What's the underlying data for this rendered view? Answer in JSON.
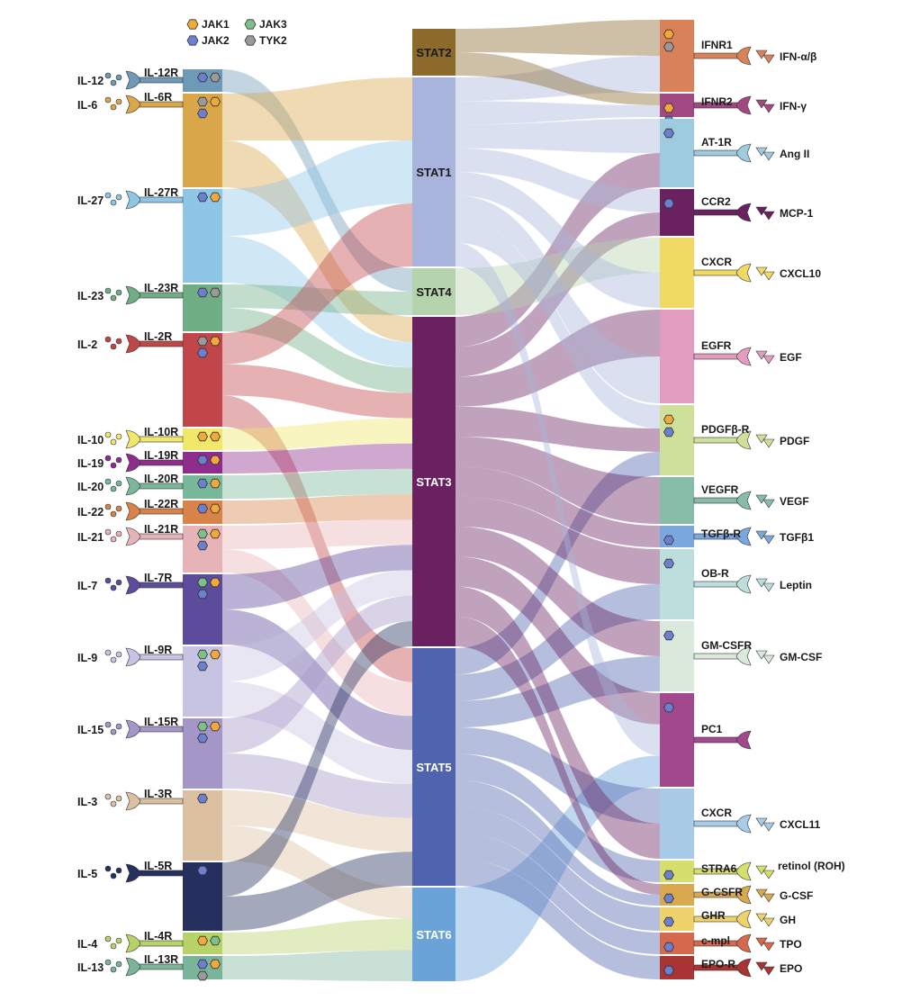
{
  "legend": [
    {
      "label": "JAK1",
      "color": "#f2a93b"
    },
    {
      "label": "JAK3",
      "color": "#7fc08a"
    },
    {
      "label": "JAK2",
      "color": "#6d7fcf"
    },
    {
      "label": "TYK2",
      "color": "#9a9a9a"
    }
  ],
  "stats": [
    {
      "label": "STAT2",
      "color": "#8b6a2c"
    },
    {
      "label": "STAT1",
      "color": "#a9b4dc"
    },
    {
      "label": "STAT4",
      "color": "#b5d3ad"
    },
    {
      "label": "STAT3",
      "color": "#6a2160"
    },
    {
      "label": "STAT5",
      "color": "#4f63ae"
    },
    {
      "label": "STAT6",
      "color": "#6aa3d8"
    }
  ],
  "left_receptors": [
    {
      "ligand": "IL-12",
      "receptor": "IL-12R",
      "color": "#6e9ab8",
      "jaks": [
        "JAK2",
        "TYK2"
      ],
      "targets": [
        "STAT4"
      ]
    },
    {
      "ligand": "IL-6",
      "receptor": "IL-6R",
      "color": "#d9a74a",
      "jaks": [
        "TYK2",
        "JAK1",
        "JAK2"
      ],
      "targets": [
        "STAT1",
        "STAT3"
      ]
    },
    {
      "ligand": "IL-27",
      "receptor": "IL-27R",
      "color": "#8fc6e6",
      "jaks": [
        "JAK2",
        "JAK1"
      ],
      "targets": [
        "STAT1",
        "STAT3"
      ]
    },
    {
      "ligand": "IL-23",
      "receptor": "IL-23R",
      "color": "#6fae85",
      "jaks": [
        "JAK2",
        "TYK2"
      ],
      "targets": [
        "STAT4",
        "STAT3"
      ]
    },
    {
      "ligand": "IL-2",
      "receptor": "IL-2R",
      "color": "#c0464a",
      "jaks": [
        "TYK2",
        "JAK1",
        "JAK2"
      ],
      "targets": [
        "STAT1",
        "STAT3",
        "STAT5"
      ]
    },
    {
      "ligand": "IL-10",
      "receptor": "IL-10R",
      "color": "#f1e76b",
      "jaks": [
        "JAK1",
        "JAK1"
      ],
      "targets": [
        "STAT3"
      ]
    },
    {
      "ligand": "IL-19",
      "receptor": "IL-19R",
      "color": "#8f2d8c",
      "jaks": [
        "JAK2",
        "JAK1"
      ],
      "targets": [
        "STAT3"
      ]
    },
    {
      "ligand": "IL-20",
      "receptor": "IL-20R",
      "color": "#79b79a",
      "jaks": [
        "JAK2",
        "JAK1"
      ],
      "targets": [
        "STAT3"
      ]
    },
    {
      "ligand": "IL-22",
      "receptor": "IL-22R",
      "color": "#d7834a",
      "jaks": [
        "JAK2",
        "JAK1"
      ],
      "targets": [
        "STAT3"
      ]
    },
    {
      "ligand": "IL-21",
      "receptor": "IL-21R",
      "color": "#e6b3b6",
      "jaks": [
        "JAK3",
        "JAK1",
        "JAK2"
      ],
      "targets": [
        "STAT3",
        "STAT5"
      ]
    },
    {
      "ligand": "IL-7",
      "receptor": "IL-7R",
      "color": "#5d4b9b",
      "jaks": [
        "JAK3",
        "JAK1",
        "JAK2"
      ],
      "targets": [
        "STAT3",
        "STAT5"
      ]
    },
    {
      "ligand": "IL-9",
      "receptor": "IL-9R",
      "color": "#c7c3e2",
      "jaks": [
        "JAK3",
        "JAK1",
        "JAK2"
      ],
      "targets": [
        "STAT3",
        "STAT5"
      ]
    },
    {
      "ligand": "IL-15",
      "receptor": "IL-15R",
      "color": "#a596c8",
      "jaks": [
        "JAK3",
        "JAK1",
        "JAK2"
      ],
      "targets": [
        "STAT3",
        "STAT5"
      ]
    },
    {
      "ligand": "IL-3",
      "receptor": "IL-3R",
      "color": "#dcc1a0",
      "jaks": [
        "JAK2"
      ],
      "targets": [
        "STAT5",
        "STAT6"
      ]
    },
    {
      "ligand": "IL-5",
      "receptor": "IL-5R",
      "color": "#26305e",
      "jaks": [
        "JAK2"
      ],
      "targets": [
        "STAT3",
        "STAT5"
      ]
    },
    {
      "ligand": "IL-4",
      "receptor": "IL-4R",
      "color": "#b8d26a",
      "jaks": [
        "JAK1",
        "JAK3"
      ],
      "targets": [
        "STAT6"
      ]
    },
    {
      "ligand": "IL-13",
      "receptor": "IL-13R",
      "color": "#7bb49a",
      "jaks": [
        "JAK2",
        "JAK1",
        "TYK2"
      ],
      "targets": [
        "STAT6"
      ]
    }
  ],
  "right_receptors": [
    {
      "receptor": "IFNR1",
      "ligand": "IFN-α/β",
      "color": "#d9825a",
      "jaks": [
        "JAK1",
        "TYK2"
      ],
      "sources": [
        "STAT2",
        "STAT1"
      ]
    },
    {
      "receptor": "IFNR2",
      "ligand": "IFN-γ",
      "color": "#a14980",
      "jaks": [
        "JAK1",
        "JAK2"
      ],
      "sources": [
        "STAT2",
        "STAT1"
      ]
    },
    {
      "receptor": "AT-1R",
      "ligand": "Ang II",
      "color": "#9fcbe0",
      "jaks": [
        "JAK2"
      ],
      "sources": [
        "STAT1",
        "STAT3"
      ]
    },
    {
      "receptor": "CCR2",
      "ligand": "MCP-1",
      "color": "#6a2160",
      "jaks": [
        "JAK2"
      ],
      "sources": [
        "STAT1",
        "STAT3"
      ]
    },
    {
      "receptor": "CXCR",
      "ligand": "CXCL10",
      "color": "#f1da63",
      "jaks": [],
      "sources": [
        "STAT4",
        "STAT1"
      ]
    },
    {
      "receptor": "EGFR",
      "ligand": "EGF",
      "color": "#e19cbf",
      "jaks": [],
      "sources": [
        "STAT3",
        "STAT1"
      ]
    },
    {
      "receptor": "PDGFβ-R",
      "ligand": "PDGF",
      "color": "#cfe09a",
      "jaks": [
        "JAK1",
        "JAK2"
      ],
      "sources": [
        "STAT1",
        "STAT3",
        "STAT5"
      ]
    },
    {
      "receptor": "VEGFR",
      "ligand": "VEGF",
      "color": "#86bca8",
      "jaks": [],
      "sources": [
        "STAT3"
      ]
    },
    {
      "receptor": "TGFβ-R",
      "ligand": "TGFβ1",
      "color": "#7aa8de",
      "jaks": [
        "JAK2"
      ],
      "sources": [
        "STAT3"
      ]
    },
    {
      "receptor": "OB-R",
      "ligand": "Leptin",
      "color": "#bcdedc",
      "jaks": [
        "JAK2"
      ],
      "sources": [
        "STAT3",
        "STAT5"
      ]
    },
    {
      "receptor": "GM-CSFR",
      "ligand": "GM-CSF",
      "color": "#dbe8dc",
      "jaks": [
        "JAK2"
      ],
      "sources": [
        "STAT3",
        "STAT5"
      ]
    },
    {
      "receptor": "PC1",
      "ligand": "",
      "color": "#a2498d",
      "jaks": [
        "JAK2"
      ],
      "sources": [
        "STAT3",
        "STAT1",
        "STAT6"
      ]
    },
    {
      "receptor": "CXCR",
      "ligand": "CXCL11",
      "color": "#a8cbe8",
      "jaks": [],
      "sources": [
        "STAT5",
        "STAT3"
      ]
    },
    {
      "receptor": "STRA6",
      "ligand": "retinol (ROH)",
      "color": "#d6df6c",
      "jaks": [
        "JAK2"
      ],
      "sources": [
        "STAT5"
      ]
    },
    {
      "receptor": "G-CSFR",
      "ligand": "G-CSF",
      "color": "#d9a94f",
      "jaks": [
        "JAK2"
      ],
      "sources": [
        "STAT3",
        "STAT5"
      ]
    },
    {
      "receptor": "GHR",
      "ligand": "GH",
      "color": "#eed26b",
      "jaks": [
        "JAK2"
      ],
      "sources": [
        "STAT5"
      ]
    },
    {
      "receptor": "c-mpl",
      "ligand": "TPO",
      "color": "#d6694c",
      "jaks": [
        "JAK2"
      ],
      "sources": [
        "STAT5"
      ]
    },
    {
      "receptor": "EPO-R",
      "ligand": "EPO",
      "color": "#a83434",
      "jaks": [
        "JAK2"
      ],
      "sources": [
        "STAT5"
      ]
    }
  ]
}
